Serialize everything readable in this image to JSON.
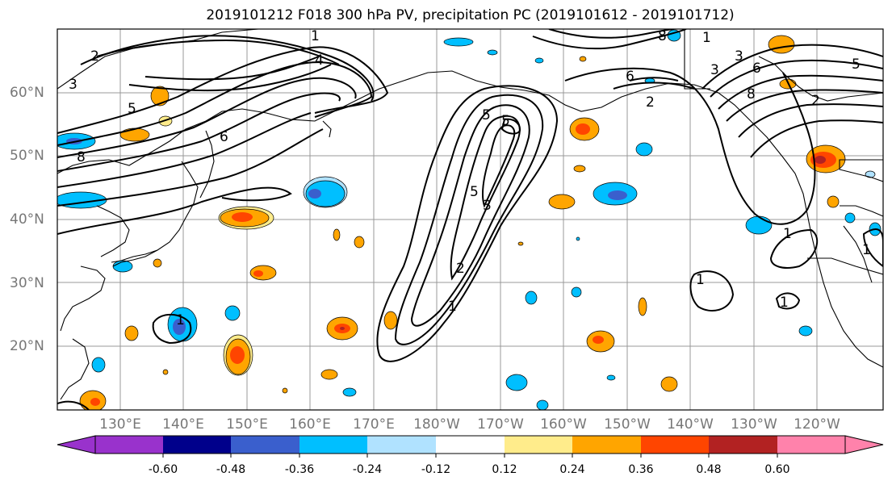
{
  "title": "2019101212 F018 300 hPa PV, precipitation PC (2019101612 - 2019101712)",
  "map": {
    "lat_labels": [
      "60°N",
      "50°N",
      "40°N",
      "30°N",
      "20°N"
    ],
    "lon_labels": [
      "130°E",
      "140°E",
      "150°E",
      "160°E",
      "170°E",
      "180°W",
      "170°W",
      "160°W",
      "150°W",
      "140°W",
      "130°W",
      "120°W"
    ],
    "pv_contour_labels": [
      "1",
      "2",
      "3",
      "4",
      "5",
      "6",
      "8",
      "1",
      "2",
      "3",
      "5",
      "1",
      "2",
      "3",
      "5",
      "6",
      "8",
      "1",
      "2",
      "3",
      "5",
      "6",
      "8",
      "1",
      "1",
      "1",
      "1",
      "5"
    ]
  },
  "colorbar": {
    "ticks": [
      "-0.60",
      "-0.48",
      "-0.36",
      "-0.24",
      "-0.12",
      "0.12",
      "0.24",
      "0.36",
      "0.48",
      "0.60"
    ],
    "colors": [
      "#9932cc",
      "#00008b",
      "#3a5fcd",
      "#00bfff",
      "#b0e2ff",
      "#ffffff",
      "#ffec8b",
      "#ffa500",
      "#ff4500",
      "#b22222",
      "#ff82ab"
    ]
  }
}
